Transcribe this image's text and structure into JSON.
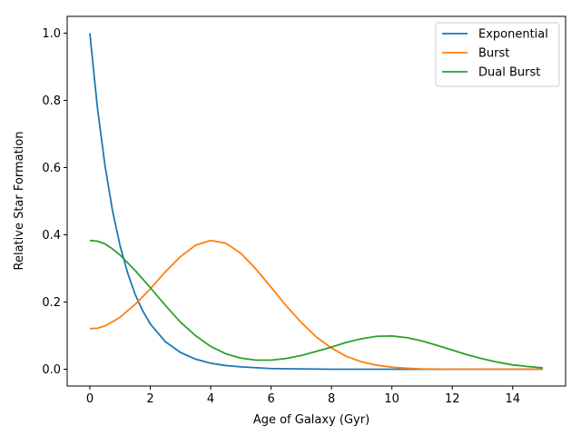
{
  "chart_data": {
    "type": "line",
    "xlabel": "Age of Galaxy (Gyr)",
    "ylabel": "Relative Star Formation",
    "xlim": [
      -0.75,
      15.75
    ],
    "ylim": [
      -0.05,
      1.05
    ],
    "xticks": [
      0,
      2,
      4,
      6,
      8,
      10,
      12,
      14
    ],
    "xtick_labels": [
      "0",
      "2",
      "4",
      "6",
      "8",
      "10",
      "12",
      "14"
    ],
    "yticks": [
      0.0,
      0.2,
      0.4,
      0.6,
      0.8,
      1.0
    ],
    "ytick_labels": [
      "0.0",
      "0.2",
      "0.4",
      "0.6",
      "0.8",
      "1.0"
    ],
    "grid": false,
    "legend_position": "top-right",
    "series": [
      {
        "name": "Exponential",
        "color": "#1f77b4",
        "x": [
          0,
          0.25,
          0.5,
          0.75,
          1,
          1.25,
          1.5,
          1.75,
          2,
          2.5,
          3,
          3.5,
          4,
          4.5,
          5,
          6,
          7,
          8,
          9,
          10,
          11,
          12,
          13,
          14,
          15
        ],
        "y": [
          1.0,
          0.779,
          0.607,
          0.472,
          0.368,
          0.287,
          0.223,
          0.174,
          0.135,
          0.082,
          0.05,
          0.03,
          0.018,
          0.011,
          0.007,
          0.002,
          0.001,
          0.0,
          0.0,
          0.0,
          0.0,
          0.0,
          0.0,
          0.0,
          0.0
        ]
      },
      {
        "name": "Burst",
        "color": "#ff7f0e",
        "x": [
          0,
          0.25,
          0.5,
          0.75,
          1,
          1.5,
          2,
          2.5,
          3,
          3.5,
          4,
          4.5,
          5,
          5.5,
          6,
          6.5,
          7,
          7.5,
          8,
          8.5,
          9,
          9.5,
          10,
          10.5,
          11,
          12,
          13,
          14,
          15
        ],
        "y": [
          0.121,
          0.122,
          0.129,
          0.141,
          0.155,
          0.193,
          0.239,
          0.29,
          0.335,
          0.369,
          0.383,
          0.375,
          0.345,
          0.298,
          0.244,
          0.189,
          0.139,
          0.096,
          0.063,
          0.038,
          0.022,
          0.012,
          0.006,
          0.003,
          0.001,
          0.0,
          0.0,
          0.0,
          0.0
        ]
      },
      {
        "name": "Dual Burst",
        "color": "#2ca02c",
        "x": [
          0,
          0.25,
          0.5,
          0.75,
          1,
          1.5,
          2,
          2.5,
          3,
          3.5,
          4,
          4.5,
          5,
          5.5,
          6,
          6.5,
          7,
          7.5,
          8,
          8.5,
          9,
          9.5,
          10,
          10.5,
          11,
          11.5,
          12,
          12.5,
          13,
          13.5,
          14,
          14.5,
          15
        ],
        "y": [
          0.383,
          0.381,
          0.373,
          0.358,
          0.34,
          0.294,
          0.243,
          0.19,
          0.14,
          0.1,
          0.068,
          0.046,
          0.033,
          0.027,
          0.027,
          0.032,
          0.041,
          0.053,
          0.066,
          0.08,
          0.091,
          0.098,
          0.099,
          0.094,
          0.084,
          0.071,
          0.057,
          0.043,
          0.031,
          0.021,
          0.013,
          0.008,
          0.004
        ]
      }
    ]
  }
}
